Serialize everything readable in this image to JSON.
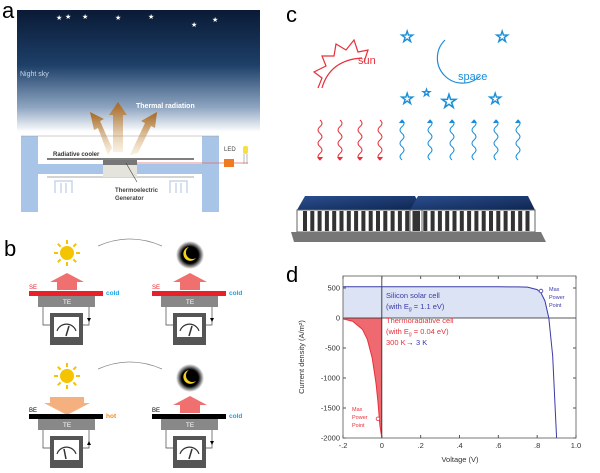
{
  "panels": {
    "a": {
      "label": "a",
      "sky_label": "Night sky",
      "radiation_label": "Thermal radiation",
      "cooler_label": "Radiative cooler",
      "teg_label_1": "Thermoelectric",
      "teg_label_2": "Generator",
      "led_label": "LED"
    },
    "b": {
      "label": "b",
      "emitters": [
        {
          "surface": "SE",
          "state": "cold",
          "module": "TE"
        },
        {
          "surface": "SE",
          "state": "cold",
          "module": "TE"
        },
        {
          "surface": "BE",
          "state": "hot",
          "module": "TE"
        },
        {
          "surface": "BE",
          "state": "cold",
          "module": "TE"
        }
      ]
    },
    "c": {
      "label": "c",
      "sun_label": "sun",
      "space_label": "space"
    },
    "d": {
      "label": "d"
    }
  },
  "colors": {
    "silicon": "#3a3aa8",
    "silicon_fill": "#dce3f5",
    "thermo": "#e8303a",
    "hot": "#f08a1c",
    "cold": "#1aa3e0",
    "sky": "#0d1f3c"
  },
  "chart_data": {
    "type": "line",
    "xlabel": "Voltage (V)",
    "ylabel": "Current density (A/m²)",
    "xlim": [
      -0.2,
      1.0
    ],
    "ylim": [
      -2000,
      700
    ],
    "xticks": [
      -0.2,
      0,
      0.2,
      0.4,
      0.6,
      0.8,
      1.0
    ],
    "xtick_labels": [
      "-.2",
      "0",
      ".2",
      ".4",
      ".6",
      ".8",
      "1.0"
    ],
    "yticks": [
      500,
      0,
      -500,
      -1000,
      -1500,
      -2000
    ],
    "ytick_labels": [
      "500",
      "0",
      "-500",
      "-1000",
      "-1500",
      "-2000"
    ],
    "series": [
      {
        "name": "Silicon solar cell",
        "annotation_1": "Silicon solar cell",
        "annotation_2": "(with E",
        "annotation_sub": "g",
        "annotation_3": " = 1.1 eV)",
        "x": [
          -0.2,
          0,
          0.2,
          0.4,
          0.6,
          0.7,
          0.75,
          0.8,
          0.82,
          0.84,
          0.86,
          0.88,
          0.9
        ],
        "y": [
          520,
          520,
          520,
          520,
          520,
          519,
          514,
          473,
          416,
          286,
          0,
          -637,
          -2000
        ],
        "max_power_point": {
          "x": 0.82,
          "y": 450,
          "label_1": "Max",
          "label_2": "Power",
          "label_3": "Point"
        }
      },
      {
        "name": "Thermoradiative cell",
        "annotation_1": "Thermoradiative  cell",
        "annotation_2": "(with E",
        "annotation_sub": "g",
        "annotation_3": " = 0.04 eV)",
        "temp_from": "300 K",
        "temp_to": "3 K",
        "x": [
          -0.2,
          -0.15,
          -0.1,
          -0.075,
          -0.05,
          -0.03,
          -0.02,
          -0.01,
          0
        ],
        "y": [
          -15,
          -54,
          -189,
          -352,
          -660,
          -1086,
          -1395,
          -1791,
          -2000
        ],
        "max_power_point": {
          "x": -0.02,
          "y": -1680,
          "label_1": "Max",
          "label_2": "Power",
          "label_3": "Point"
        }
      }
    ]
  }
}
